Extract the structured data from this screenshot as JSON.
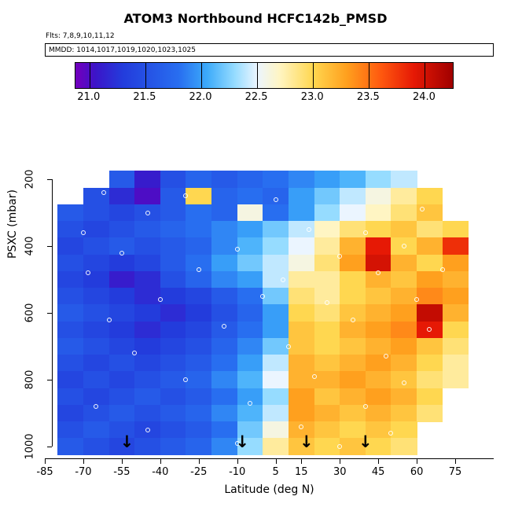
{
  "title": "ATOM3 Northbound HCFC142b_PMSD",
  "subtitle": "Flts: 7,8,9,10,11,12",
  "mmdd": "MMDD: 1014,1017,1019,1020,1023,1025",
  "axes": {
    "x_label": "Latitude (deg N)",
    "y_label": "PSXC (mbar)",
    "x_ticks": [
      {
        "value": -85,
        "label": "-85"
      },
      {
        "value": -70,
        "label": "-70"
      },
      {
        "value": -55,
        "label": "-55"
      },
      {
        "value": -40,
        "label": "-40"
      },
      {
        "value": -25,
        "label": "-25"
      },
      {
        "value": -10,
        "label": "-10"
      },
      {
        "value": 5,
        "label": "5"
      },
      {
        "value": 15,
        "label": "15"
      },
      {
        "value": 30,
        "label": "30"
      },
      {
        "value": 45,
        "label": "45"
      },
      {
        "value": 60,
        "label": "60"
      },
      {
        "value": 75,
        "label": "75"
      }
    ],
    "y_ticks": [
      {
        "value": 200,
        "label": "200"
      },
      {
        "value": 400,
        "label": "400"
      },
      {
        "value": 600,
        "label": "600"
      },
      {
        "value": 800,
        "label": "800"
      },
      {
        "value": 1000,
        "label": "1000"
      }
    ]
  },
  "colorbar": {
    "domain": [
      20.875,
      24.25
    ],
    "tick_values": [
      21.0,
      21.5,
      22.0,
      22.5,
      23.0,
      23.5,
      24.0
    ],
    "tick_labels": [
      "21.0",
      "21.5",
      "22.0",
      "22.5",
      "23.0",
      "23.5",
      "24.0"
    ],
    "colormap_stops": [
      [
        20.9,
        "#6E00BE"
      ],
      [
        21.05,
        "#3C14C8"
      ],
      [
        21.3,
        "#233CDC"
      ],
      [
        21.8,
        "#286EF0"
      ],
      [
        22.05,
        "#3CAAFA"
      ],
      [
        22.3,
        "#96DCFF"
      ],
      [
        22.5,
        "#EBF5FF"
      ],
      [
        22.7,
        "#FFF5C3"
      ],
      [
        23.0,
        "#FFD750"
      ],
      [
        23.3,
        "#FFA01E"
      ],
      [
        23.6,
        "#FF5A0F"
      ],
      [
        23.9,
        "#E61905"
      ],
      [
        24.3,
        "#A00000"
      ]
    ]
  },
  "chart_data": {
    "type": "heatmap",
    "title": "ATOM3 Northbound HCFC142b_PMSD",
    "xlabel": "Latitude (deg N)",
    "ylabel": "PSXC (mbar)",
    "xlim": [
      -85,
      90
    ],
    "ylim_reversed": [
      1050,
      150
    ],
    "value_range": [
      21.0,
      24.0
    ],
    "lat_centers": [
      -75,
      -65,
      -55,
      -45,
      -35,
      -25,
      -15,
      -5,
      5,
      15,
      25,
      35,
      45,
      55,
      65,
      75
    ],
    "pressure_levels": [
      200,
      250,
      300,
      350,
      400,
      450,
      500,
      550,
      600,
      650,
      700,
      750,
      800,
      850,
      900,
      950,
      1000
    ],
    "values": [
      [
        null,
        null,
        21.6,
        21.1,
        21.5,
        21.7,
        21.6,
        21.7,
        21.8,
        21.9,
        22.0,
        22.1,
        22.3,
        22.4,
        null,
        null
      ],
      [
        null,
        21.5,
        21.2,
        21.0,
        21.6,
        23.0,
        21.7,
        21.8,
        21.7,
        22.0,
        22.2,
        22.4,
        22.6,
        22.8,
        23.0,
        null
      ],
      [
        21.6,
        21.5,
        21.4,
        21.5,
        21.6,
        21.8,
        21.7,
        22.6,
        21.8,
        22.0,
        22.3,
        22.5,
        22.7,
        22.9,
        23.1,
        null
      ],
      [
        21.5,
        21.4,
        21.5,
        21.6,
        21.7,
        21.8,
        21.9,
        22.0,
        22.2,
        22.4,
        22.7,
        22.9,
        23.0,
        23.1,
        22.9,
        23.0
      ],
      [
        21.4,
        21.5,
        21.6,
        21.5,
        21.6,
        21.7,
        21.9,
        22.1,
        22.3,
        22.5,
        22.8,
        23.2,
        23.9,
        23.0,
        23.2,
        23.8
      ],
      [
        21.5,
        21.4,
        21.3,
        21.4,
        21.6,
        21.8,
        22.0,
        22.2,
        22.4,
        22.6,
        22.9,
        23.3,
        24.0,
        23.2,
        23.0,
        23.3
      ],
      [
        21.4,
        21.3,
        21.1,
        21.2,
        21.5,
        21.7,
        21.9,
        22.0,
        22.4,
        22.8,
        22.8,
        23.0,
        23.2,
        23.1,
        23.3,
        23.2
      ],
      [
        21.5,
        21.4,
        21.3,
        21.2,
        21.3,
        21.4,
        21.6,
        21.8,
        22.2,
        22.9,
        22.8,
        23.0,
        23.1,
        23.2,
        23.4,
        23.3
      ],
      [
        21.6,
        21.5,
        21.4,
        21.3,
        21.2,
        21.3,
        21.5,
        21.7,
        22.0,
        23.0,
        22.9,
        23.1,
        23.2,
        23.3,
        24.1,
        23.2
      ],
      [
        21.5,
        21.4,
        21.3,
        21.2,
        21.3,
        21.4,
        21.6,
        21.8,
        22.0,
        23.1,
        23.0,
        23.2,
        23.3,
        23.4,
        23.9,
        23.0
      ],
      [
        21.6,
        21.5,
        21.4,
        21.3,
        21.4,
        21.5,
        21.7,
        21.9,
        22.2,
        23.1,
        23.0,
        23.1,
        23.2,
        23.3,
        23.1,
        22.9
      ],
      [
        21.5,
        21.4,
        21.5,
        21.4,
        21.5,
        21.6,
        21.8,
        22.0,
        22.4,
        23.2,
        23.1,
        23.2,
        23.3,
        23.2,
        23.0,
        22.8
      ],
      [
        21.4,
        21.5,
        21.4,
        21.5,
        21.6,
        21.7,
        21.9,
        22.1,
        22.5,
        23.2,
        23.2,
        23.3,
        23.2,
        23.1,
        22.9,
        22.8
      ],
      [
        21.5,
        21.4,
        21.5,
        21.6,
        21.5,
        21.6,
        21.8,
        22.0,
        22.3,
        23.3,
        23.1,
        23.2,
        23.3,
        23.2,
        23.0,
        null
      ],
      [
        21.4,
        21.5,
        21.6,
        21.5,
        21.6,
        21.7,
        21.9,
        22.1,
        22.4,
        23.3,
        23.2,
        23.1,
        23.2,
        23.1,
        22.9,
        null
      ],
      [
        21.5,
        21.6,
        21.5,
        21.4,
        21.5,
        21.6,
        21.8,
        22.2,
        22.6,
        23.2,
        23.1,
        23.0,
        23.1,
        23.0,
        null,
        null
      ],
      [
        21.6,
        21.5,
        21.4,
        21.5,
        21.6,
        21.7,
        21.9,
        22.3,
        22.8,
        23.1,
        23.0,
        23.1,
        23.0,
        22.9,
        null,
        null
      ]
    ],
    "markers": [
      [
        -62,
        240
      ],
      [
        -30,
        250
      ],
      [
        5,
        260
      ],
      [
        -45,
        300
      ],
      [
        62,
        290
      ],
      [
        -70,
        360
      ],
      [
        18,
        350
      ],
      [
        40,
        360
      ],
      [
        -55,
        420
      ],
      [
        -10,
        410
      ],
      [
        30,
        430
      ],
      [
        55,
        400
      ],
      [
        -68,
        480
      ],
      [
        -25,
        470
      ],
      [
        8,
        500
      ],
      [
        45,
        480
      ],
      [
        70,
        470
      ],
      [
        -40,
        560
      ],
      [
        0,
        550
      ],
      [
        25,
        570
      ],
      [
        60,
        560
      ],
      [
        -60,
        620
      ],
      [
        -15,
        640
      ],
      [
        35,
        620
      ],
      [
        65,
        650
      ],
      [
        -50,
        720
      ],
      [
        10,
        700
      ],
      [
        48,
        730
      ],
      [
        -30,
        800
      ],
      [
        20,
        790
      ],
      [
        55,
        810
      ],
      [
        -65,
        880
      ],
      [
        -5,
        870
      ],
      [
        40,
        880
      ],
      [
        -45,
        950
      ],
      [
        15,
        940
      ],
      [
        50,
        960
      ],
      [
        -10,
        990
      ],
      [
        30,
        1000
      ]
    ],
    "arrow_latitudes": [
      -53,
      -8,
      17,
      40
    ],
    "legend_position": "top"
  }
}
